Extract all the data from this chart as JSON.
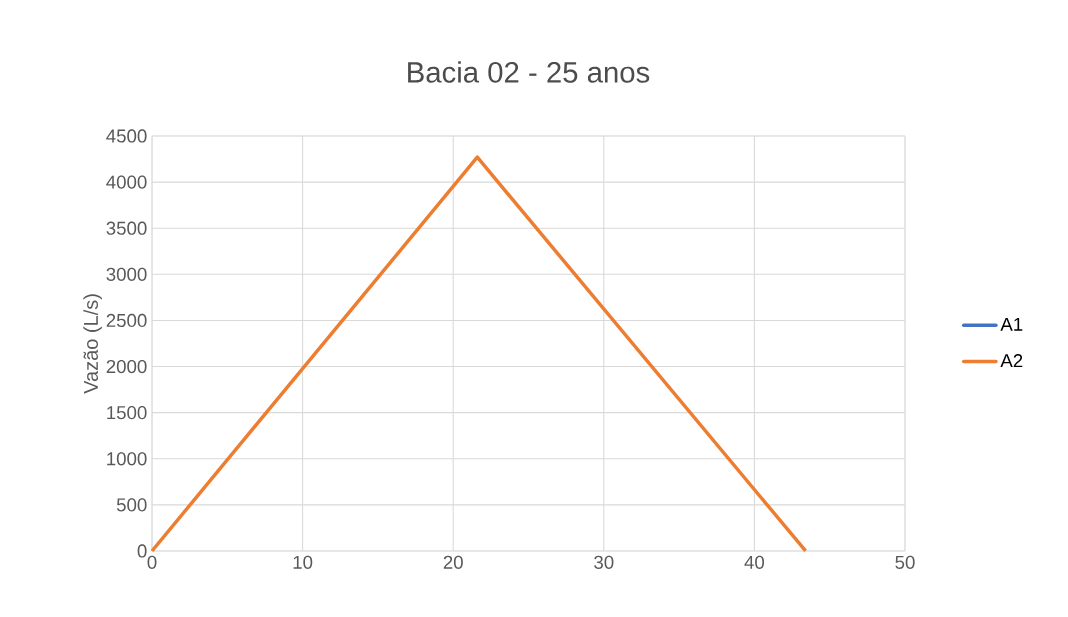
{
  "chart_data": {
    "type": "line",
    "title": "Bacia 02 - 25 anos",
    "ylabel": "Vazão (L/s)",
    "x": [
      0,
      21.6,
      43.4
    ],
    "series": [
      {
        "name": "A1",
        "color": "#4472c4",
        "values": [
          null,
          null,
          null
        ]
      },
      {
        "name": "A2",
        "color": "#ed7d31",
        "values": [
          0,
          4270,
          0
        ]
      }
    ],
    "xlim": [
      0,
      50
    ],
    "xticks": [
      0,
      10,
      20,
      30,
      40,
      50
    ],
    "ylim": [
      0,
      4500
    ],
    "yticks": [
      0,
      500,
      1000,
      1500,
      2000,
      2500,
      3000,
      3500,
      4000,
      4500
    ],
    "grid": true,
    "legend": "right",
    "marker": "none",
    "line_style": "solid"
  }
}
